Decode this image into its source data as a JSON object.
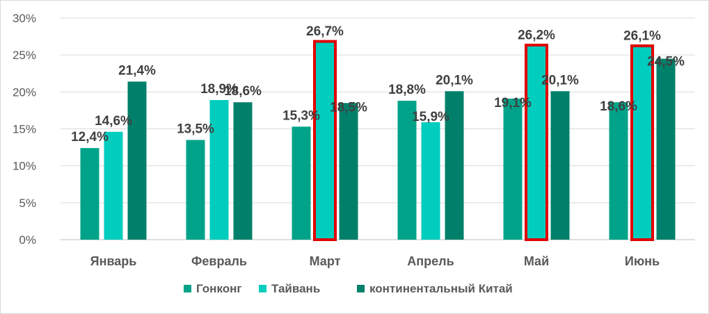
{
  "chart_data": {
    "type": "bar",
    "categories": [
      "Январь",
      "Февраль",
      "Март",
      "Апрель",
      "Май",
      "Июнь"
    ],
    "series": [
      {
        "name": "Гонконг",
        "color": "#00a389",
        "values": [
          12.4,
          13.5,
          15.3,
          18.8,
          19.1,
          18.6
        ],
        "labels": [
          "12,4%",
          "13,5%",
          "15,3%",
          "18,8%",
          "19,1%",
          "18,6%"
        ]
      },
      {
        "name": "Тайвань",
        "color": "#00cdbe",
        "values": [
          14.6,
          18.9,
          26.7,
          15.9,
          26.2,
          26.1
        ],
        "labels": [
          "14,6%",
          "18,9%",
          "26,7%",
          "15,9%",
          "26,2%",
          "26,1%"
        ]
      },
      {
        "name": "континентальный Китай",
        "color": "#00806a",
        "values": [
          21.4,
          18.6,
          18.5,
          20.1,
          20.1,
          24.5
        ],
        "labels": [
          "21,4%",
          "18,6%",
          "18,5%",
          "20,1%",
          "20,1%",
          "24,5%"
        ]
      }
    ],
    "y_ticks": [
      "0%",
      "5%",
      "10%",
      "15%",
      "20%",
      "25%",
      "30%"
    ],
    "ylim": [
      0,
      30
    ],
    "highlighted": [
      {
        "series": "Тайвань",
        "category": "Март",
        "outline_color": "#e00000"
      },
      {
        "series": "Тайвань",
        "category": "Май",
        "outline_color": "#e00000"
      },
      {
        "series": "Тайвань",
        "category": "Июнь",
        "outline_color": "#e00000"
      }
    ],
    "grid": true,
    "legend_position": "bottom"
  }
}
